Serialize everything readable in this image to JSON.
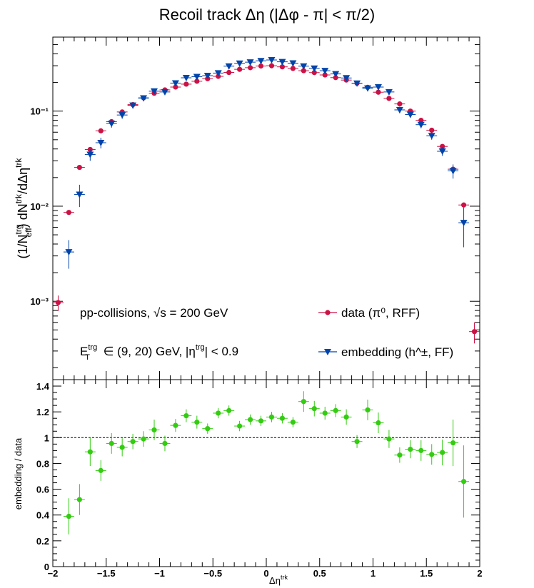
{
  "chart_data": [
    {
      "type": "scatter",
      "title": "Recoil track Δη (|Δφ - π| < π/2)",
      "ylabel": "(1/N^trg_eff) dN^trk/dΔη^trk",
      "y_scale": "log",
      "xlim": [
        -2,
        2
      ],
      "ylim": [
        0.00015,
        0.6
      ],
      "y_tick_labels": [
        "10⁻³",
        "10⁻²",
        "10⁻¹"
      ],
      "legend": {
        "placement": "bottom",
        "system_label": "pp-collisions, √s = 200 GeV",
        "cuts_label": "E_T^trg ∈ (9, 20) GeV, |η^trg| < 0.9"
      },
      "x": [
        -1.95,
        -1.85,
        -1.75,
        -1.65,
        -1.55,
        -1.45,
        -1.35,
        -1.25,
        -1.15,
        -1.05,
        -0.95,
        -0.85,
        -0.75,
        -0.65,
        -0.55,
        -0.45,
        -0.35,
        -0.25,
        -0.15,
        -0.05,
        0.05,
        0.15,
        0.25,
        0.35,
        0.45,
        0.55,
        0.65,
        0.75,
        0.85,
        0.95,
        1.05,
        1.15,
        1.25,
        1.35,
        1.45,
        1.55,
        1.65,
        1.75,
        1.85,
        1.95
      ],
      "series": [
        {
          "name": "data (π⁰, RFF)",
          "color": "#cc1144",
          "marker": "circle",
          "values": [
            0.00097,
            0.0086,
            0.0256,
            0.0395,
            0.062,
            0.0775,
            0.098,
            0.117,
            0.138,
            0.154,
            0.167,
            0.179,
            0.192,
            0.206,
            0.219,
            0.232,
            0.255,
            0.275,
            0.286,
            0.298,
            0.3,
            0.292,
            0.281,
            0.266,
            0.254,
            0.24,
            0.225,
            0.212,
            0.196,
            0.178,
            0.158,
            0.136,
            0.119,
            0.1,
            0.08,
            0.063,
            0.0425,
            0.0245,
            0.0103,
            0.00048
          ],
          "y_err": [
            0.00018,
            0.0004,
            0.001,
            0.0015,
            0.0025,
            0.003,
            0.0035,
            0.004,
            0.0045,
            0.005,
            0.005,
            0.005,
            0.005,
            0.005,
            0.005,
            0.005,
            0.006,
            0.006,
            0.006,
            0.006,
            0.006,
            0.006,
            0.006,
            0.006,
            0.006,
            0.005,
            0.005,
            0.005,
            0.005,
            0.005,
            0.005,
            0.005,
            0.004,
            0.004,
            0.003,
            0.003,
            0.002,
            0.0015,
            0.0005,
            0.00012
          ]
        },
        {
          "name": "embedding (h^±, FF)",
          "color": "#0044aa",
          "marker": "triangle-down",
          "values": [
            null,
            0.0033,
            0.0133,
            0.035,
            0.0465,
            0.074,
            0.091,
            0.115,
            0.137,
            0.162,
            0.159,
            0.197,
            0.224,
            0.23,
            0.236,
            0.251,
            0.297,
            0.318,
            0.327,
            0.338,
            0.345,
            0.33,
            0.319,
            0.297,
            0.282,
            0.266,
            0.246,
            0.223,
            0.196,
            0.174,
            0.179,
            0.159,
            0.103,
            0.092,
            0.072,
            0.055,
            0.0378,
            0.0235,
            0.0067,
            null
          ],
          "y_err": [
            null,
            0.0011,
            0.0035,
            0.005,
            0.006,
            0.007,
            0.008,
            0.008,
            0.009,
            0.01,
            0.01,
            0.011,
            0.012,
            0.012,
            0.012,
            0.012,
            0.014,
            0.014,
            0.014,
            0.015,
            0.015,
            0.014,
            0.014,
            0.014,
            0.013,
            0.013,
            0.012,
            0.012,
            0.011,
            0.01,
            0.01,
            0.009,
            0.008,
            0.007,
            0.006,
            0.005,
            0.004,
            0.004,
            0.003,
            null
          ]
        }
      ]
    },
    {
      "type": "scatter",
      "xlabel": "Δη^trk",
      "ylabel": "embedding / data",
      "xlim": [
        -2,
        2
      ],
      "ylim": [
        0,
        1.45
      ],
      "x_tick_labels": [
        "−2",
        "−1.5",
        "−1",
        "−0.5",
        "0",
        "0.5",
        "1",
        "1.5",
        "2"
      ],
      "y_tick_labels": [
        "0",
        "0.2",
        "0.4",
        "0.6",
        "0.8",
        "1",
        "1.2",
        "1.4"
      ],
      "reference_line": 1,
      "x": [
        -1.85,
        -1.75,
        -1.65,
        -1.55,
        -1.45,
        -1.35,
        -1.25,
        -1.15,
        -1.05,
        -0.95,
        -0.85,
        -0.75,
        -0.65,
        -0.55,
        -0.45,
        -0.35,
        -0.25,
        -0.15,
        -0.05,
        0.05,
        0.15,
        0.25,
        0.35,
        0.45,
        0.55,
        0.65,
        0.75,
        0.85,
        0.95,
        1.05,
        1.15,
        1.25,
        1.35,
        1.45,
        1.55,
        1.65,
        1.75,
        1.85
      ],
      "series": [
        {
          "name": "",
          "color": "#33cc11",
          "marker": "circle",
          "values": [
            0.39,
            0.52,
            0.89,
            0.745,
            0.955,
            0.925,
            0.97,
            0.99,
            1.06,
            0.955,
            1.095,
            1.17,
            1.12,
            1.07,
            1.19,
            1.21,
            1.09,
            1.14,
            1.13,
            1.16,
            1.15,
            1.12,
            1.28,
            1.225,
            1.19,
            1.21,
            1.16,
            0.97,
            1.215,
            1.115,
            0.99,
            0.865,
            0.91,
            0.9,
            0.87,
            0.885,
            0.96,
            0.66
          ],
          "y_err": [
            0.14,
            0.12,
            0.11,
            0.08,
            0.08,
            0.07,
            0.06,
            0.06,
            0.08,
            0.06,
            0.05,
            0.05,
            0.05,
            0.04,
            0.04,
            0.04,
            0.04,
            0.04,
            0.04,
            0.04,
            0.04,
            0.04,
            0.08,
            0.06,
            0.05,
            0.05,
            0.06,
            0.05,
            0.08,
            0.08,
            0.07,
            0.06,
            0.07,
            0.08,
            0.08,
            0.1,
            0.18,
            0.28
          ]
        }
      ]
    }
  ]
}
